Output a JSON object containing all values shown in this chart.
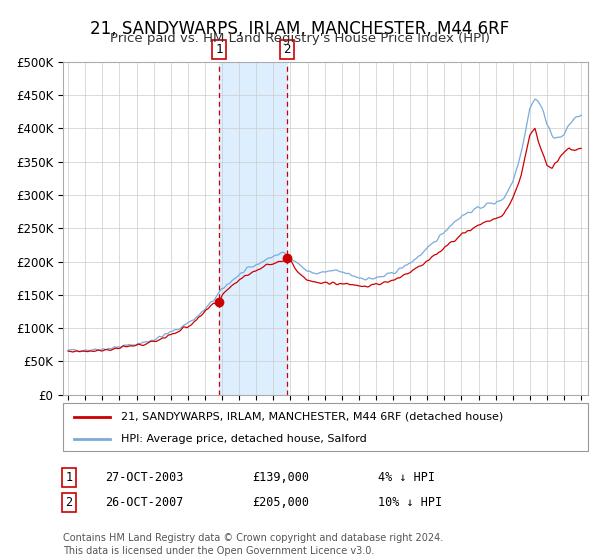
{
  "title": "21, SANDYWARPS, IRLAM, MANCHESTER, M44 6RF",
  "subtitle": "Price paid vs. HM Land Registry's House Price Index (HPI)",
  "title_fontsize": 12,
  "subtitle_fontsize": 10,
  "ylabel_ticks": [
    "£0",
    "£50K",
    "£100K",
    "£150K",
    "£200K",
    "£250K",
    "£300K",
    "£350K",
    "£400K",
    "£450K",
    "£500K"
  ],
  "ytick_values": [
    0,
    50000,
    100000,
    150000,
    200000,
    250000,
    300000,
    350000,
    400000,
    450000,
    500000
  ],
  "xlim_start": 1994.7,
  "xlim_end": 2025.4,
  "ylim_min": 0,
  "ylim_max": 500000,
  "sale1_date": 2003.82,
  "sale1_price": 139000,
  "sale2_date": 2007.82,
  "sale2_price": 205000,
  "sale1_label": "1",
  "sale2_label": "2",
  "marker_color": "#cc0000",
  "hpi_color": "#7aabdb",
  "price_color": "#cc0000",
  "shading_color": "#ddeeff",
  "grid_color": "#cccccc",
  "background_color": "#ffffff",
  "legend_label_price": "21, SANDYWARPS, IRLAM, MANCHESTER, M44 6RF (detached house)",
  "legend_label_hpi": "HPI: Average price, detached house, Salford",
  "footer1": "Contains HM Land Registry data © Crown copyright and database right 2024.",
  "footer2": "This data is licensed under the Open Government Licence v3.0.",
  "hpi_anchors_x": [
    1995.0,
    1995.5,
    1996.0,
    1996.5,
    1997.0,
    1997.5,
    1998.0,
    1998.5,
    1999.0,
    1999.5,
    2000.0,
    2000.5,
    2001.0,
    2001.5,
    2002.0,
    2002.5,
    2003.0,
    2003.5,
    2004.0,
    2004.5,
    2005.0,
    2005.5,
    2006.0,
    2006.5,
    2007.0,
    2007.5,
    2008.0,
    2008.5,
    2009.0,
    2009.5,
    2010.0,
    2010.5,
    2011.0,
    2011.5,
    2012.0,
    2012.5,
    2013.0,
    2013.5,
    2014.0,
    2014.5,
    2015.0,
    2015.5,
    2016.0,
    2016.5,
    2017.0,
    2017.5,
    2018.0,
    2018.5,
    2019.0,
    2019.5,
    2020.0,
    2020.5,
    2021.0,
    2021.5,
    2022.0,
    2022.3,
    2022.5,
    2022.8,
    2023.0,
    2023.3,
    2023.6,
    2024.0,
    2024.3,
    2024.6,
    2025.0
  ],
  "hpi_anchors_y": [
    66000,
    67000,
    67500,
    68000,
    69000,
    70000,
    72000,
    74000,
    76000,
    79000,
    83000,
    88000,
    94000,
    100000,
    108000,
    116000,
    128000,
    142000,
    158000,
    170000,
    180000,
    188000,
    195000,
    202000,
    208000,
    213000,
    208000,
    196000,
    185000,
    182000,
    184000,
    186000,
    184000,
    180000,
    176000,
    174000,
    175000,
    178000,
    183000,
    190000,
    198000,
    208000,
    218000,
    232000,
    245000,
    258000,
    268000,
    275000,
    280000,
    286000,
    288000,
    296000,
    320000,
    365000,
    430000,
    445000,
    440000,
    425000,
    405000,
    390000,
    385000,
    390000,
    405000,
    415000,
    420000
  ],
  "price_anchors_x": [
    1995.0,
    1995.5,
    1996.0,
    1996.5,
    1997.0,
    1997.5,
    1998.0,
    1998.5,
    1999.0,
    1999.5,
    2000.0,
    2000.5,
    2001.0,
    2001.5,
    2002.0,
    2002.5,
    2003.0,
    2003.5,
    2003.82,
    2004.0,
    2004.5,
    2005.0,
    2005.5,
    2006.0,
    2006.5,
    2007.0,
    2007.5,
    2007.82,
    2008.0,
    2008.5,
    2009.0,
    2009.5,
    2010.0,
    2010.5,
    2011.0,
    2011.5,
    2012.0,
    2012.5,
    2013.0,
    2013.5,
    2014.0,
    2014.5,
    2015.0,
    2015.5,
    2016.0,
    2016.5,
    2017.0,
    2017.5,
    2018.0,
    2018.5,
    2019.0,
    2019.5,
    2020.0,
    2020.5,
    2021.0,
    2021.5,
    2022.0,
    2022.3,
    2022.5,
    2022.8,
    2023.0,
    2023.3,
    2023.6,
    2024.0,
    2024.3,
    2024.6,
    2025.0
  ],
  "price_anchors_y": [
    65000,
    65500,
    66000,
    66500,
    67000,
    68000,
    70000,
    72000,
    74000,
    76000,
    80000,
    85000,
    90000,
    96000,
    103000,
    111000,
    124000,
    136000,
    139000,
    150000,
    163000,
    173000,
    180000,
    187000,
    193000,
    198000,
    202000,
    205000,
    200000,
    183000,
    173000,
    168000,
    167000,
    168000,
    167000,
    166000,
    164000,
    163000,
    165000,
    168000,
    172000,
    177000,
    184000,
    193000,
    200000,
    210000,
    220000,
    232000,
    240000,
    248000,
    254000,
    260000,
    263000,
    272000,
    295000,
    330000,
    390000,
    400000,
    380000,
    360000,
    345000,
    340000,
    350000,
    365000,
    370000,
    365000,
    370000
  ]
}
